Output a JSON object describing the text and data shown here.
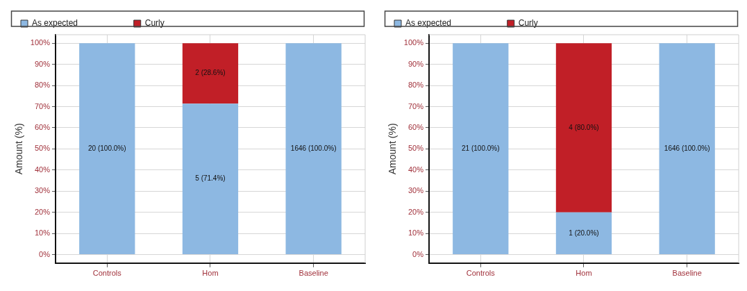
{
  "chart_data": [
    {
      "type": "bar",
      "stacked": true,
      "categories": [
        "Controls",
        "Hom",
        "Baseline"
      ],
      "ylabel": "Amount (%)",
      "ylim": [
        -4,
        104
      ],
      "yticks": [
        {
          "value": 0,
          "label": "0%"
        },
        {
          "value": 10,
          "label": "10%"
        },
        {
          "value": 20,
          "label": "20%"
        },
        {
          "value": 30,
          "label": "30%"
        },
        {
          "value": 40,
          "label": "40%"
        },
        {
          "value": 50,
          "label": "50%"
        },
        {
          "value": 60,
          "label": "60%"
        },
        {
          "value": 70,
          "label": "70%"
        },
        {
          "value": 80,
          "label": "80%"
        },
        {
          "value": 90,
          "label": "90%"
        },
        {
          "value": 100,
          "label": "100%"
        }
      ],
      "grid": true,
      "legend": "top",
      "series": [
        {
          "name": "As expected",
          "color": "#8db8e2",
          "values": [
            100,
            71.4,
            100
          ],
          "value_labels": [
            "20 (100.0%)",
            "5 (71.4%)",
            "1646 (100.0%)"
          ]
        },
        {
          "name": "Curly",
          "color": "#c11f27",
          "values": [
            0,
            28.6,
            0
          ],
          "value_labels": [
            null,
            "2 (28.6%)",
            null
          ]
        }
      ]
    },
    {
      "type": "bar",
      "stacked": true,
      "categories": [
        "Controls",
        "Hom",
        "Baseline"
      ],
      "ylabel": "Amount (%)",
      "ylim": [
        -4,
        104
      ],
      "yticks": [
        {
          "value": 0,
          "label": "0%"
        },
        {
          "value": 10,
          "label": "10%"
        },
        {
          "value": 20,
          "label": "20%"
        },
        {
          "value": 30,
          "label": "30%"
        },
        {
          "value": 40,
          "label": "40%"
        },
        {
          "value": 50,
          "label": "50%"
        },
        {
          "value": 60,
          "label": "60%"
        },
        {
          "value": 70,
          "label": "70%"
        },
        {
          "value": 80,
          "label": "80%"
        },
        {
          "value": 90,
          "label": "90%"
        },
        {
          "value": 100,
          "label": "100%"
        }
      ],
      "grid": true,
      "legend": "top",
      "series": [
        {
          "name": "As expected",
          "color": "#8db8e2",
          "values": [
            100,
            20,
            100
          ],
          "value_labels": [
            "21 (100.0%)",
            "1 (20.0%)",
            "1646 (100.0%)"
          ]
        },
        {
          "name": "Curly",
          "color": "#c11f27",
          "values": [
            0,
            80,
            0
          ],
          "value_labels": [
            null,
            "4 (80.0%)",
            null
          ]
        }
      ]
    }
  ]
}
